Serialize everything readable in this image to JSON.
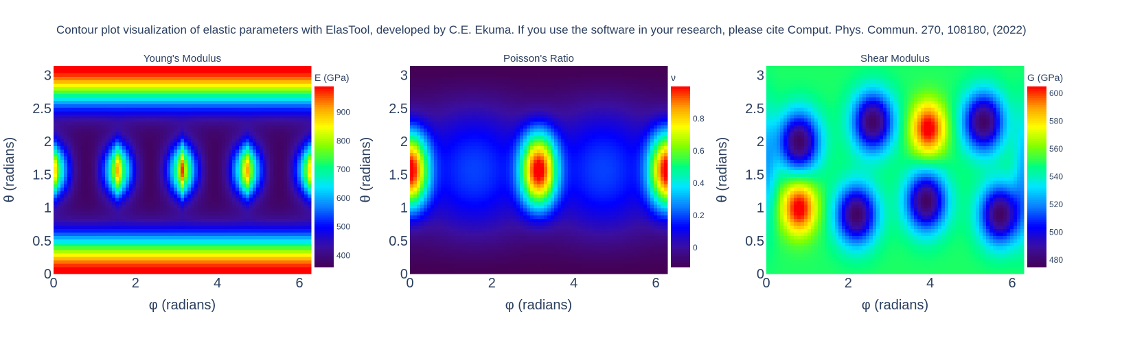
{
  "title": "Contour plot visualization of elastic parameters with ElasTool, developed by C.E. Ekuma. If you use the software in your research, please cite Comput. Phys. Commun. 270, 108180, (2022)",
  "colorscale": [
    "#440154",
    "#3b0f9f",
    "#0000ff",
    "#0a7cff",
    "#00e5ff",
    "#00ff80",
    "#80ff00",
    "#ffff00",
    "#ff9d00",
    "#ff0000"
  ],
  "chart_data": [
    {
      "type": "heatmap",
      "title": "Young's Modulus",
      "xlabel": "φ (radians)",
      "ylabel": "θ (radians)",
      "xlim": [
        0,
        6.283
      ],
      "ylim": [
        0,
        3.1416
      ],
      "x_ticks": [
        "0",
        "2",
        "4",
        "6"
      ],
      "y_ticks": [
        "0",
        "0.5",
        "1",
        "1.5",
        "2",
        "2.5",
        "3"
      ],
      "colorbar": {
        "title": "E (GPa)",
        "range": [
          360,
          990
        ],
        "ticks": [
          400,
          500,
          600,
          700,
          800,
          900
        ]
      },
      "z_description": "Bands of ~990 GPa near θ=0 and θ=π; minima ~360 GPa near θ=0.6 and θ=2.5; peaks ~990 GPa at θ=π/2 and φ = 0, π/2, π, 3π/2, 2π"
    },
    {
      "type": "heatmap",
      "title": "Poisson's Ratio",
      "xlabel": "φ (radians)",
      "ylabel": "θ (radians)",
      "xlim": [
        0,
        6.283
      ],
      "ylim": [
        0,
        3.1416
      ],
      "x_ticks": [
        "0",
        "2",
        "4",
        "6"
      ],
      "y_ticks": [
        "0",
        "0.5",
        "1",
        "1.5",
        "2",
        "2.5",
        "3"
      ],
      "colorbar": {
        "title": "ν",
        "range": [
          -0.12,
          1.0
        ],
        "ticks": [
          0,
          0.2,
          0.4,
          0.6,
          0.8
        ]
      },
      "z_description": "Peaks ~1.0 at θ=π/2 and φ = 0, π, 2π; minima ~-0.1 near θ=0 and θ=π"
    },
    {
      "type": "heatmap",
      "title": "Shear Modulus",
      "xlabel": "φ (radians)",
      "ylabel": "θ (radians)",
      "xlim": [
        0,
        6.283
      ],
      "ylim": [
        0,
        3.1416
      ],
      "x_ticks": [
        "0",
        "2",
        "4",
        "6"
      ],
      "y_ticks": [
        "0",
        "0.5",
        "1",
        "1.5",
        "2",
        "2.5",
        "3"
      ],
      "colorbar": {
        "title": "G (GPa)",
        "range": [
          475,
          605
        ],
        "ticks": [
          480,
          500,
          520,
          540,
          560,
          580,
          600
        ]
      },
      "z_description": "Background ~550 GPa; maxima ~605 GPa at (φ=0.8, θ=1.0) and (φ=3.95, θ=2.2); minima ~478 GPa at (0.8,2.0), (2.2,0.9), (2.6,2.3), (3.9,1.1), (5.3,2.3), (5.7,0.9)"
    }
  ]
}
